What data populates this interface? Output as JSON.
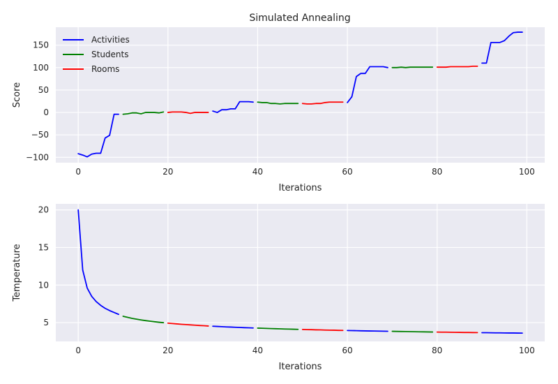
{
  "figure": {
    "title": "Simulated Annealing",
    "background_color": "#ffffff",
    "axes_face_color": "#eaeaf2",
    "grid_color": "#ffffff"
  },
  "chart_data": [
    {
      "type": "line",
      "title": "Simulated Annealing",
      "xlabel": "Iterations",
      "ylabel": "Score",
      "xlim": [
        -5,
        104
      ],
      "ylim": [
        -112,
        190
      ],
      "xticks": [
        0,
        20,
        40,
        60,
        80,
        100
      ],
      "yticks": [
        -100,
        -50,
        0,
        50,
        100,
        150
      ],
      "grid": true,
      "legend": {
        "position": "top-left",
        "entries": [
          {
            "label": "Activities",
            "color": "#0000ff"
          },
          {
            "label": "Students",
            "color": "#008000"
          },
          {
            "label": "Rooms",
            "color": "#ff0000"
          }
        ]
      },
      "series": [
        {
          "name": "Activities",
          "color": "#0000ff",
          "x": [
            0,
            1,
            2,
            3,
            4,
            5,
            6,
            7,
            8,
            9
          ],
          "y": [
            -92,
            -95,
            -99,
            -93,
            -91,
            -91,
            -57,
            -51,
            -4,
            -4
          ]
        },
        {
          "name": "Students",
          "color": "#008000",
          "x": [
            10,
            11,
            12,
            13,
            14,
            15,
            16,
            17,
            18,
            19
          ],
          "y": [
            -4,
            -3,
            -1,
            -1,
            -3,
            0,
            0,
            0,
            -1,
            1
          ]
        },
        {
          "name": "Rooms",
          "color": "#ff0000",
          "x": [
            20,
            21,
            22,
            23,
            24,
            25,
            26,
            27,
            28,
            29
          ],
          "y": [
            0,
            1,
            1,
            1,
            0,
            -2,
            0,
            0,
            0,
            0
          ]
        },
        {
          "name": "Activities",
          "color": "#0000ff",
          "x": [
            30,
            31,
            32,
            33,
            34,
            35,
            36,
            37,
            38,
            39
          ],
          "y": [
            3,
            0,
            6,
            6,
            8,
            8,
            24,
            24,
            24,
            23
          ]
        },
        {
          "name": "Students",
          "color": "#008000",
          "x": [
            40,
            41,
            42,
            43,
            44,
            45,
            46,
            47,
            48,
            49
          ],
          "y": [
            23,
            22,
            22,
            20,
            20,
            19,
            20,
            20,
            20,
            20
          ]
        },
        {
          "name": "Rooms",
          "color": "#ff0000",
          "x": [
            50,
            51,
            52,
            53,
            54,
            55,
            56,
            57,
            58,
            59
          ],
          "y": [
            20,
            19,
            19,
            20,
            20,
            22,
            23,
            23,
            23,
            23
          ]
        },
        {
          "name": "Activities",
          "color": "#0000ff",
          "x": [
            60,
            61,
            62,
            63,
            64,
            65,
            66,
            67,
            68,
            69
          ],
          "y": [
            22,
            35,
            80,
            87,
            87,
            102,
            102,
            102,
            102,
            100
          ]
        },
        {
          "name": "Students",
          "color": "#008000",
          "x": [
            70,
            71,
            72,
            73,
            74,
            75,
            76,
            77,
            78,
            79
          ],
          "y": [
            100,
            100,
            101,
            100,
            101,
            101,
            101,
            101,
            101,
            101
          ]
        },
        {
          "name": "Rooms",
          "color": "#ff0000",
          "x": [
            80,
            81,
            82,
            83,
            84,
            85,
            86,
            87,
            88,
            89
          ],
          "y": [
            101,
            101,
            101,
            102,
            102,
            102,
            102,
            102,
            103,
            103
          ]
        },
        {
          "name": "Activities",
          "color": "#0000ff",
          "x": [
            90,
            91,
            92,
            93,
            94,
            95,
            96,
            97,
            98,
            99
          ],
          "y": [
            110,
            110,
            156,
            156,
            156,
            160,
            170,
            178,
            179,
            179
          ]
        }
      ]
    },
    {
      "type": "line",
      "xlabel": "Iterations",
      "ylabel": "Temperature",
      "xlim": [
        -5,
        104
      ],
      "ylim": [
        2.5,
        20.8
      ],
      "xticks": [
        0,
        20,
        40,
        60,
        80,
        100
      ],
      "yticks": [
        5,
        10,
        15,
        20
      ],
      "grid": true,
      "series": [
        {
          "name": "Activities",
          "color": "#0000ff",
          "x": [
            0,
            0.5,
            1,
            2,
            3,
            4,
            5,
            6,
            7,
            8,
            9
          ],
          "y": [
            20,
            16,
            12,
            9.6,
            8.5,
            7.8,
            7.3,
            6.9,
            6.6,
            6.35,
            6.1
          ]
        },
        {
          "name": "Students",
          "color": "#008000",
          "x": [
            10,
            11,
            12,
            13,
            14,
            15,
            16,
            17,
            18,
            19
          ],
          "y": [
            5.85,
            5.7,
            5.57,
            5.46,
            5.36,
            5.27,
            5.19,
            5.12,
            5.05,
            4.99
          ]
        },
        {
          "name": "Rooms",
          "color": "#ff0000",
          "x": [
            20,
            21,
            22,
            23,
            24,
            25,
            26,
            27,
            28,
            29
          ],
          "y": [
            4.93,
            4.88,
            4.83,
            4.78,
            4.74,
            4.7,
            4.66,
            4.62,
            4.59,
            4.55
          ]
        },
        {
          "name": "Activities",
          "color": "#0000ff",
          "x": [
            30,
            31,
            32,
            33,
            34,
            35,
            36,
            37,
            38,
            39
          ],
          "y": [
            4.52,
            4.49,
            4.46,
            4.43,
            4.41,
            4.38,
            4.36,
            4.33,
            4.31,
            4.29
          ]
        },
        {
          "name": "Students",
          "color": "#008000",
          "x": [
            40,
            41,
            42,
            43,
            44,
            45,
            46,
            47,
            48,
            49
          ],
          "y": [
            4.27,
            4.25,
            4.23,
            4.21,
            4.19,
            4.17,
            4.15,
            4.14,
            4.12,
            4.1
          ]
        },
        {
          "name": "Rooms",
          "color": "#ff0000",
          "x": [
            50,
            51,
            52,
            53,
            54,
            55,
            56,
            57,
            58,
            59
          ],
          "y": [
            4.09,
            4.07,
            4.06,
            4.04,
            4.03,
            4.01,
            4.0,
            3.99,
            3.97,
            3.96
          ]
        },
        {
          "name": "Activities",
          "color": "#0000ff",
          "x": [
            60,
            61,
            62,
            63,
            64,
            65,
            66,
            67,
            68,
            69
          ],
          "y": [
            3.95,
            3.94,
            3.93,
            3.91,
            3.9,
            3.89,
            3.88,
            3.87,
            3.86,
            3.85
          ]
        },
        {
          "name": "Students",
          "color": "#008000",
          "x": [
            70,
            71,
            72,
            73,
            74,
            75,
            76,
            77,
            78,
            79
          ],
          "y": [
            3.84,
            3.83,
            3.82,
            3.81,
            3.8,
            3.79,
            3.78,
            3.77,
            3.76,
            3.75
          ]
        },
        {
          "name": "Rooms",
          "color": "#ff0000",
          "x": [
            80,
            81,
            82,
            83,
            84,
            85,
            86,
            87,
            88,
            89
          ],
          "y": [
            3.74,
            3.73,
            3.73,
            3.72,
            3.71,
            3.7,
            3.69,
            3.69,
            3.68,
            3.67
          ]
        },
        {
          "name": "Activities",
          "color": "#0000ff",
          "x": [
            90,
            91,
            92,
            93,
            94,
            95,
            96,
            97,
            98,
            99
          ],
          "y": [
            3.66,
            3.66,
            3.65,
            3.64,
            3.64,
            3.63,
            3.62,
            3.62,
            3.61,
            3.6
          ]
        }
      ]
    }
  ]
}
